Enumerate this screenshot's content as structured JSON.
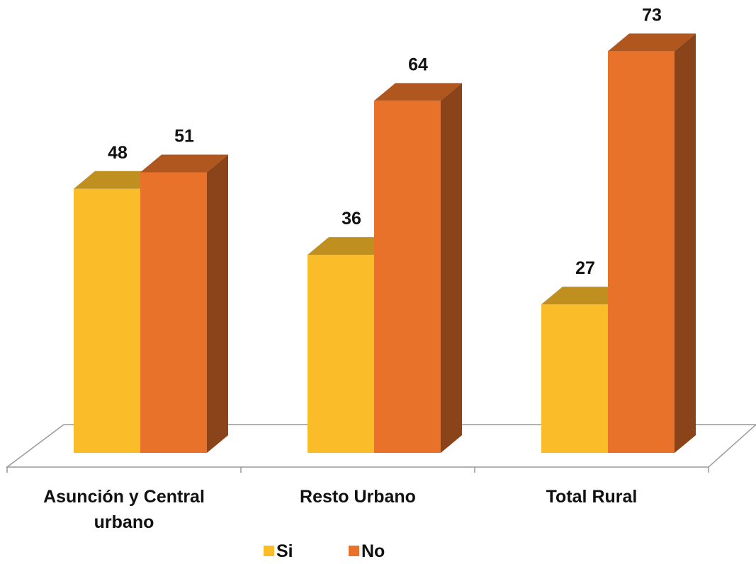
{
  "chart_data": {
    "type": "bar3d",
    "categories": [
      "Asunción y Central urbano",
      "Resto Urbano",
      "Total Rural"
    ],
    "series": [
      {
        "name": "Si",
        "color": "#FBBC2A",
        "values": [
          48,
          36,
          27
        ]
      },
      {
        "name": "No",
        "color": "#E8722A",
        "values": [
          51,
          64,
          73
        ]
      }
    ],
    "ylim": [
      0,
      80
    ],
    "legend": "bottom"
  }
}
